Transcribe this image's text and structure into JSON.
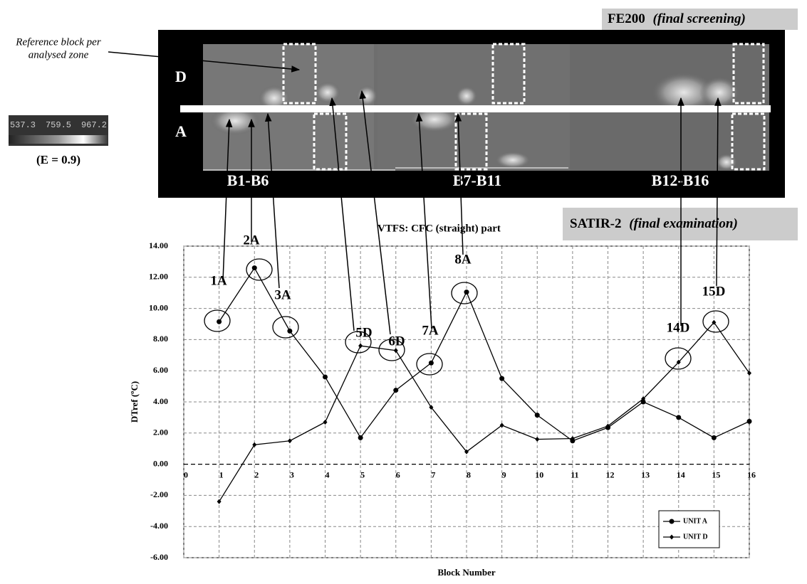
{
  "chart_data": {
    "type": "line",
    "y_label": "DTref (ºC)",
    "x_label": "Block Number",
    "x": [
      1,
      2,
      3,
      4,
      5,
      6,
      7,
      8,
      9,
      10,
      11,
      12,
      13,
      14,
      15,
      16
    ],
    "series": [
      {
        "name": "UNIT A",
        "color": "#000000",
        "marker": "circle",
        "values": [
          9.15,
          12.6,
          8.55,
          5.6,
          1.7,
          4.75,
          6.5,
          11.05,
          5.5,
          3.15,
          1.5,
          2.35,
          4.0,
          3.0,
          1.7,
          2.75
        ]
      },
      {
        "name": "UNIT D",
        "color": "#000000",
        "marker": "diamond",
        "values": [
          -2.4,
          1.25,
          1.5,
          2.7,
          7.6,
          7.3,
          3.65,
          0.8,
          2.5,
          1.6,
          1.65,
          2.45,
          4.2,
          6.55,
          9.1,
          5.85
        ]
      }
    ],
    "xlim": [
      0,
      16
    ],
    "xticks": [
      0,
      1,
      2,
      3,
      4,
      5,
      6,
      7,
      8,
      9,
      10,
      11,
      12,
      13,
      14,
      15,
      16
    ],
    "ylim": [
      -6,
      14
    ],
    "yticks": [
      {
        "value": -6,
        "label": "-6.00"
      },
      {
        "value": -4,
        "label": "-4.00"
      },
      {
        "value": -2,
        "label": "-2.00"
      },
      {
        "value": 0,
        "label": "0.00"
      },
      {
        "value": 2,
        "label": "2.00"
      },
      {
        "value": 4,
        "label": "4.00"
      },
      {
        "value": 6,
        "label": "6.00"
      },
      {
        "value": 8,
        "label": "8.00"
      },
      {
        "value": 10,
        "label": "10.00"
      },
      {
        "value": 12,
        "label": "12.00"
      },
      {
        "value": 14,
        "label": "14.00"
      }
    ],
    "grid": true,
    "legend": "lower right",
    "annotations": [
      "1A",
      "2A",
      "3A",
      "5D",
      "6D",
      "7A",
      "8A",
      "14D",
      "15D"
    ],
    "vtfs_note": "VTFS: CFC (straight) part",
    "satir_label": "SATIR-2",
    "satir_note": "(final examination)"
  },
  "image": {
    "fe200_label": "FE200",
    "fe200_note": "(final screening)",
    "reference_note": [
      "Reference block per",
      "analysed zone"
    ],
    "row_labels": [
      "D",
      "A"
    ],
    "zones": [
      "B1-B6",
      "B7-B11",
      "B12-B16"
    ],
    "colorbar_labels": [
      "537.3",
      "759.5",
      "967.2"
    ],
    "emissivity": "(E = 0.9)"
  }
}
